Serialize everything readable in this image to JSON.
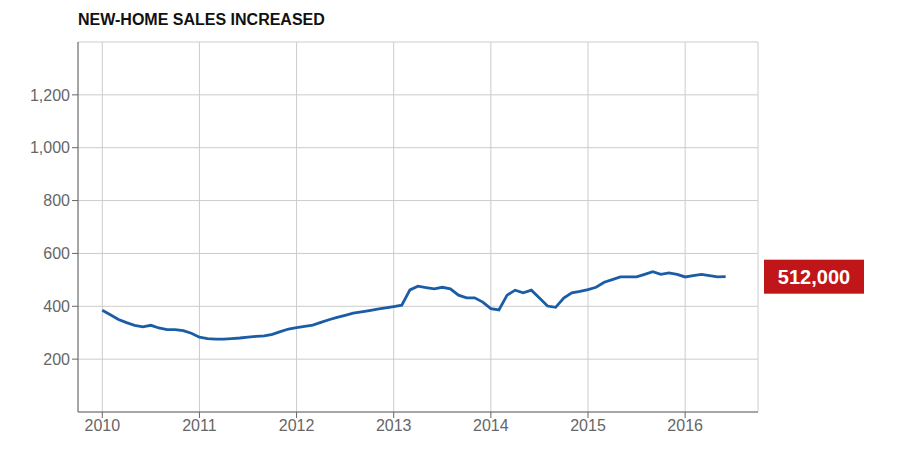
{
  "chart_data": {
    "type": "line",
    "title": "NEW-HOME SALES INCREASED",
    "x": [
      2010.0,
      2010.083,
      2010.167,
      2010.25,
      2010.333,
      2010.417,
      2010.5,
      2010.583,
      2010.667,
      2010.75,
      2010.833,
      2010.917,
      2011.0,
      2011.083,
      2011.167,
      2011.25,
      2011.333,
      2011.417,
      2011.5,
      2011.583,
      2011.667,
      2011.75,
      2011.833,
      2011.917,
      2012.0,
      2012.083,
      2012.167,
      2012.25,
      2012.333,
      2012.417,
      2012.5,
      2012.583,
      2012.667,
      2012.75,
      2012.833,
      2012.917,
      2013.0,
      2013.083,
      2013.167,
      2013.25,
      2013.333,
      2013.417,
      2013.5,
      2013.583,
      2013.667,
      2013.75,
      2013.833,
      2013.917,
      2014.0,
      2014.083,
      2014.167,
      2014.25,
      2014.333,
      2014.417,
      2014.5,
      2014.583,
      2014.667,
      2014.75,
      2014.833,
      2014.917,
      2015.0,
      2015.083,
      2015.167,
      2015.25,
      2015.333,
      2015.417,
      2015.5,
      2015.583,
      2015.667,
      2015.75,
      2015.833,
      2015.917,
      2016.0,
      2016.083,
      2016.167,
      2016.25,
      2016.333,
      2016.417
    ],
    "values": [
      385,
      368,
      350,
      338,
      328,
      322,
      328,
      318,
      312,
      312,
      308,
      298,
      283,
      278,
      276,
      276,
      278,
      280,
      283,
      286,
      288,
      294,
      304,
      314,
      319,
      324,
      329,
      339,
      349,
      358,
      366,
      374,
      379,
      384,
      389,
      394,
      399,
      404,
      462,
      476,
      471,
      466,
      472,
      466,
      442,
      432,
      432,
      416,
      391,
      386,
      442,
      461,
      451,
      461,
      431,
      401,
      396,
      431,
      451,
      456,
      463,
      472,
      491,
      501,
      511,
      511,
      511,
      521,
      531,
      521,
      526,
      521,
      511,
      516,
      521,
      516,
      511,
      512
    ],
    "color": "#1a5da6",
    "xlim": [
      2009.75,
      2016.75
    ],
    "xticks": [
      2010,
      2011,
      2012,
      2013,
      2014,
      2015,
      2016
    ],
    "ylim": [
      0,
      1400
    ],
    "yticks": [
      200,
      400,
      600,
      800,
      {
        "value": 1000,
        "label": "1,000"
      },
      {
        "value": 1200,
        "label": "1,200"
      }
    ],
    "grid": true,
    "annotations": [
      {
        "text": "512,000",
        "color": "#c0161a"
      }
    ]
  }
}
